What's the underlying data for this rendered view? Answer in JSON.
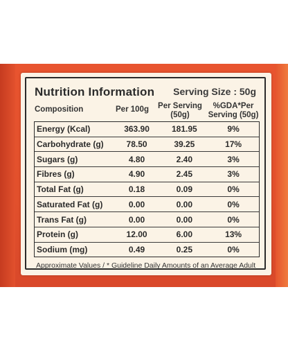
{
  "panel": {
    "title": "Nutrition Information",
    "serving_size": "Serving Size : 50g"
  },
  "headers": {
    "composition": "Composition",
    "per_100g": "Per 100g",
    "per_serving_line1": "Per Serving",
    "per_serving_line2": "(50g)",
    "gda_line1": "%GDA*Per",
    "gda_line2": "Serving (50g)"
  },
  "rows": [
    {
      "name": "Energy (Kcal)",
      "per100": "363.90",
      "serving": "181.95",
      "gda": "9%"
    },
    {
      "name": "Carbohydrate (g)",
      "per100": "78.50",
      "serving": "39.25",
      "gda": "17%"
    },
    {
      "name": "Sugars (g)",
      "per100": "4.80",
      "serving": "2.40",
      "gda": "3%"
    },
    {
      "name": "Fibres (g)",
      "per100": "4.90",
      "serving": "2.45",
      "gda": "3%"
    },
    {
      "name": "Total Fat (g)",
      "per100": "0.18",
      "serving": "0.09",
      "gda": "0%"
    },
    {
      "name": "Saturated Fat (g)",
      "per100": "0.00",
      "serving": "0.00",
      "gda": "0%"
    },
    {
      "name": "Trans Fat (g)",
      "per100": "0.00",
      "serving": "0.00",
      "gda": "0%"
    },
    {
      "name": "Protein (g)",
      "per100": "12.00",
      "serving": "6.00",
      "gda": "13%"
    },
    {
      "name": "Sodium (mg)",
      "per100": "0.49",
      "serving": "0.25",
      "gda": "0%"
    }
  ],
  "footnote": "Approximate Values / * Guideline Daily Amounts of an Average Adult",
  "colors": {
    "pack": "#e2502c",
    "label": "#fbf3e6",
    "ink": "#2a2a2a"
  }
}
